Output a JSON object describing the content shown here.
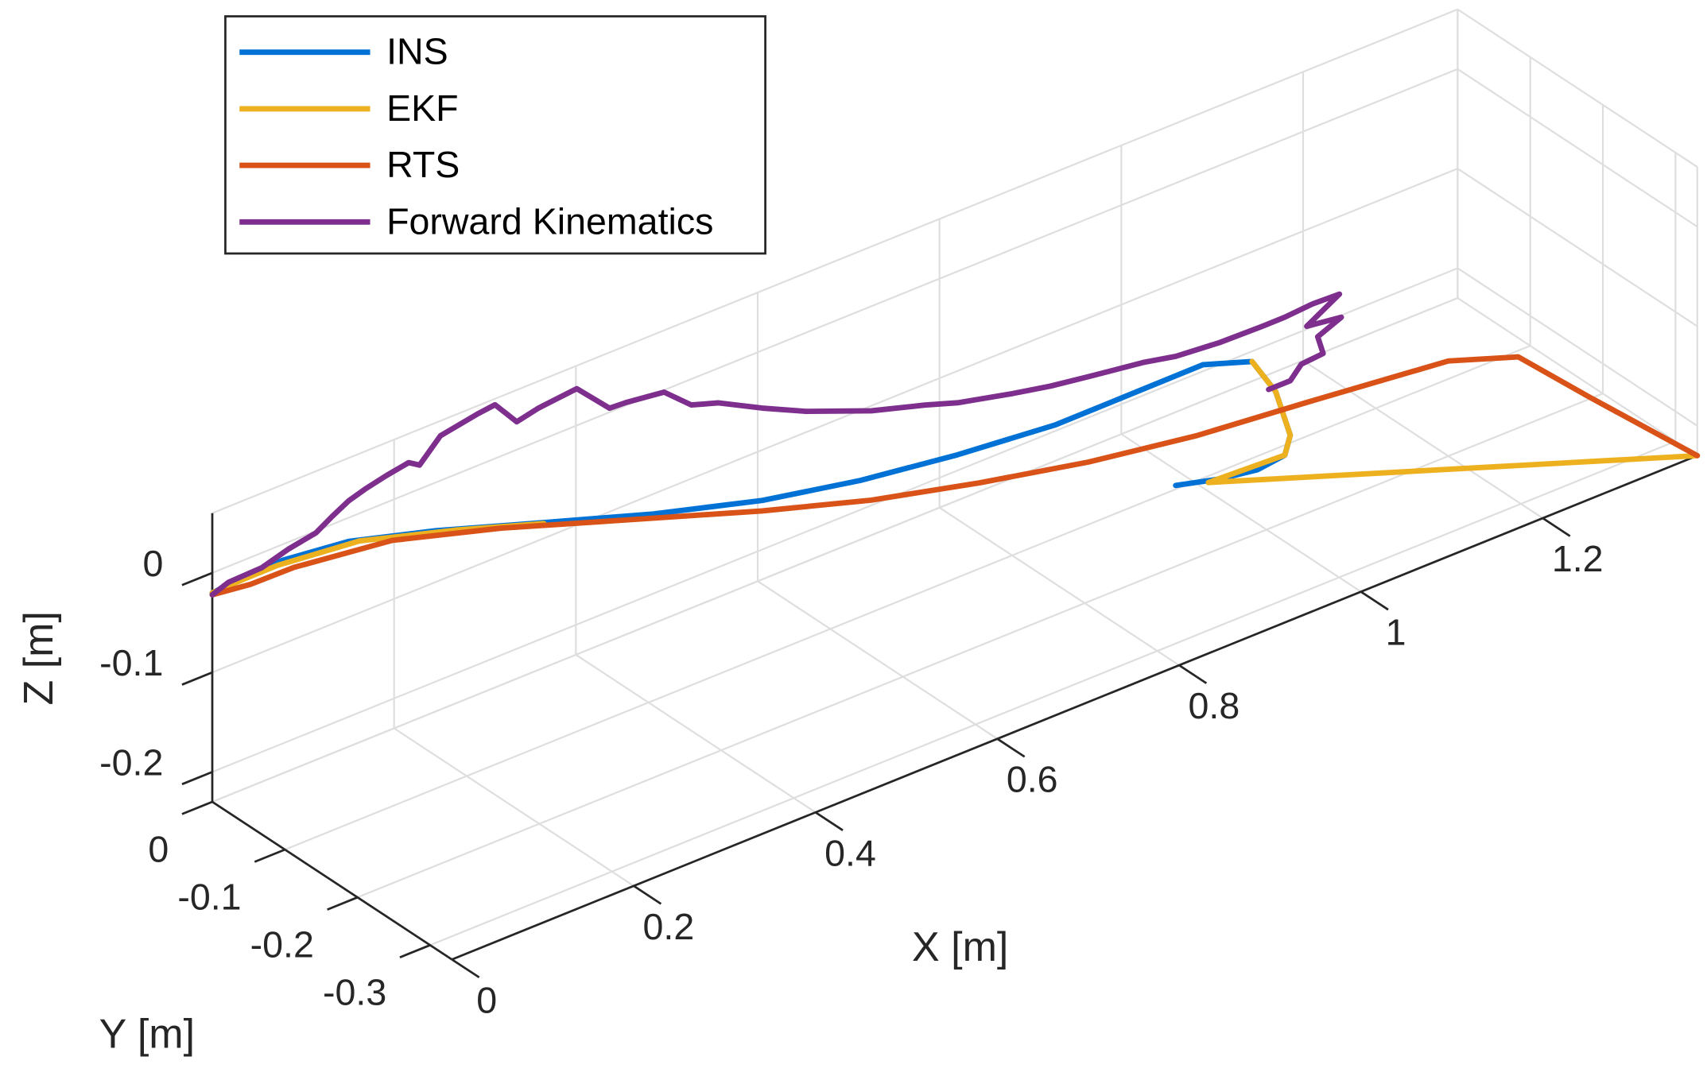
{
  "chart_data": {
    "type": "line3d",
    "xlabel": "X [m]",
    "ylabel": "Y [m]",
    "zlabel": "Z [m]",
    "xlim": [
      0,
      1.37
    ],
    "ylim": [
      -0.33,
      0
    ],
    "zlim": [
      -0.23,
      0.06
    ],
    "xticks": [
      0,
      0.2,
      0.4,
      0.6,
      0.8,
      1,
      1.2
    ],
    "yticks": [
      -0.3,
      -0.2,
      -0.1,
      0
    ],
    "zticks": [
      -0.2,
      -0.1,
      0
    ],
    "grid": true,
    "legend": "top-left",
    "series": [
      {
        "name": "INS",
        "color": "#0072d6",
        "x": [
          0,
          0.024,
          0.078,
          0.142,
          0.23,
          0.341,
          0.453,
          0.565,
          0.665,
          0.764,
          0.864,
          0.94,
          1.01,
          1.056,
          1.074,
          1.082,
          1.068,
          1.03,
          0.98,
          0.924
        ],
        "y": [
          0,
          0,
          0,
          -0.01,
          -0.02,
          -0.03,
          -0.04,
          -0.05,
          -0.06,
          -0.07,
          -0.08,
          -0.09,
          -0.1,
          -0.11,
          -0.12,
          -0.13,
          -0.14,
          -0.15,
          -0.16,
          -0.17
        ],
        "z": [
          -0.02,
          -0.018,
          -0.016,
          -0.016,
          -0.033,
          -0.061,
          -0.089,
          -0.112,
          -0.124,
          -0.13,
          -0.132,
          -0.124,
          -0.116,
          -0.125,
          -0.157,
          -0.199,
          -0.209,
          -0.205,
          -0.191,
          -0.172
        ]
      },
      {
        "name": "EKF",
        "color": "#edb120",
        "x": [
          0,
          0.036,
          0.072,
          0.154,
          0.254,
          0.341,
          null,
          1.056,
          1.074,
          1.082,
          1.068,
          0.968,
          1.37
        ],
        "y": [
          0,
          0,
          0,
          -0.01,
          -0.02,
          -0.03,
          null,
          -0.11,
          -0.12,
          -0.13,
          -0.14,
          -0.16,
          -0.33
        ],
        "z": [
          -0.02,
          -0.019,
          -0.019,
          -0.02,
          -0.041,
          -0.062,
          null,
          -0.125,
          -0.157,
          -0.199,
          -0.209,
          -0.19,
          -0.23
        ]
      },
      {
        "name": "RTS",
        "color": "#d95319",
        "x": [
          0,
          0.042,
          0.082,
          0.182,
          0.293,
          0.421,
          0.549,
          0.653,
          0.756,
          0.86,
          0.964,
          1.06,
          1.184,
          1.237,
          1.283,
          1.37
        ],
        "y": [
          0,
          0,
          -0.01,
          -0.02,
          -0.03,
          -0.05,
          -0.07,
          -0.09,
          -0.11,
          -0.13,
          -0.15,
          -0.18,
          -0.22,
          -0.25,
          -0.29,
          -0.33
        ],
        "z": [
          -0.022,
          -0.027,
          -0.02,
          -0.025,
          -0.049,
          -0.078,
          -0.107,
          -0.125,
          -0.136,
          -0.144,
          -0.146,
          -0.134,
          -0.119,
          -0.12,
          -0.158,
          -0.23
        ]
      },
      {
        "name": "Forward Kinematics",
        "color": "#7e2f8e",
        "x": [
          0,
          0.018,
          0.054,
          0.084,
          0.114,
          0.132,
          0.15,
          0.168,
          0.192,
          0.216,
          0.228,
          0.251,
          0.293,
          0.311,
          0.335,
          0.359,
          0.401,
          0.437,
          0.455,
          0.497,
          0.527,
          0.557,
          0.605,
          0.653,
          0.725,
          0.784,
          0.82,
          0.88,
          0.922,
          0.964,
          1.024,
          1.06,
          1.108,
          1.156,
          1.18,
          1.21,
          1.24,
          1.204,
          1.242,
          1.216,
          1.222,
          1.198,
          1.186,
          1.162
        ],
        "y": [
          0,
          0,
          0,
          0,
          0,
          0,
          0,
          0,
          0,
          0,
          0,
          0,
          0,
          0,
          0,
          0,
          0,
          0,
          0,
          0,
          0,
          0,
          0,
          0,
          0,
          0,
          0,
          0,
          0,
          0,
          0,
          0,
          0,
          0,
          0,
          0,
          0,
          0,
          0,
          0,
          0,
          0,
          0,
          0
        ],
        "z": [
          -0.022,
          -0.016,
          -0.015,
          -0.007,
          -0.002,
          0.008,
          0.017,
          0.022,
          0.027,
          0.031,
          0.024,
          0.045,
          0.052,
          0.054,
          0.028,
          0.033,
          0.037,
          0.004,
          0.003,
          -0.002,
          -0.026,
          -0.035,
          -0.058,
          -0.079,
          -0.105,
          -0.121,
          -0.132,
          -0.145,
          -0.153,
          -0.159,
          -0.167,
          -0.174,
          -0.178,
          -0.179,
          -0.179,
          -0.177,
          -0.178,
          -0.197,
          -0.202,
          -0.212,
          -0.231,
          -0.233,
          -0.245,
          -0.245
        ]
      }
    ]
  }
}
